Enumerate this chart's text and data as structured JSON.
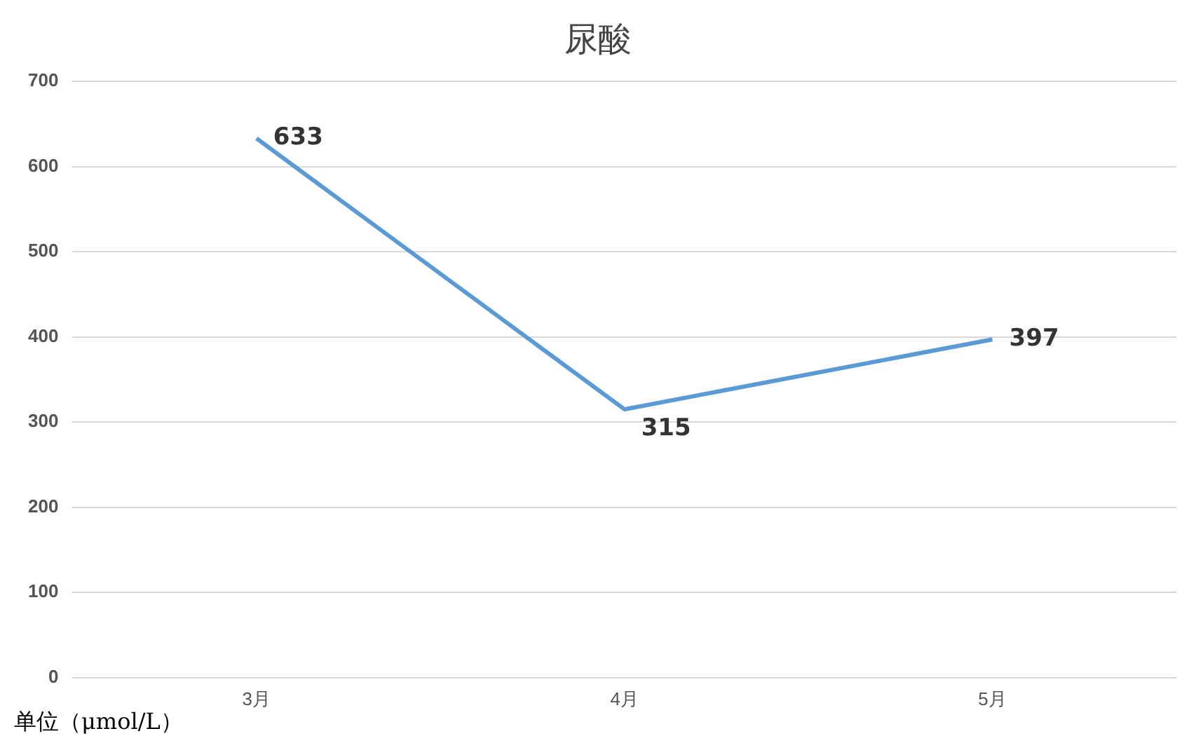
{
  "chart_data": {
    "type": "line",
    "title": "尿酸",
    "ylabel": "单位（μmol/L）",
    "categories": [
      "3月",
      "4月",
      "5月"
    ],
    "series": [
      {
        "color": "#5b9bd5",
        "values": [
          633,
          315,
          397
        ]
      }
    ],
    "ylim": [
      0,
      700
    ],
    "yticks": [
      0,
      100,
      200,
      300,
      400,
      500,
      600,
      700
    ],
    "grid": "y",
    "legend": false,
    "marker": "none",
    "data_labels": true
  }
}
